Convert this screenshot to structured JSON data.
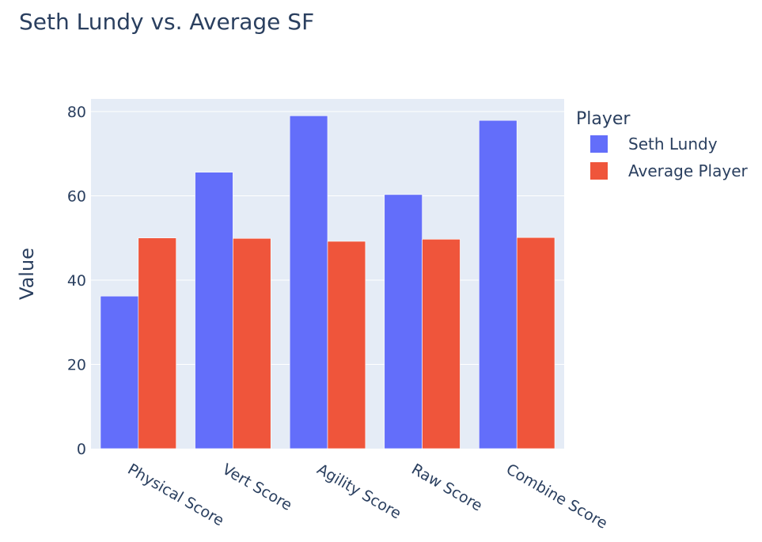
{
  "chart_data": {
    "type": "bar",
    "title": "Seth Lundy vs. Average SF",
    "xlabel": "",
    "ylabel": "Value",
    "categories": [
      "Physical Score",
      "Vert Score",
      "Agility Score",
      "Raw Score",
      "Combine Score"
    ],
    "series": [
      {
        "name": "Seth Lundy",
        "values": [
          36.2,
          65.6,
          79.0,
          60.3,
          77.9
        ],
        "color": "#636efa"
      },
      {
        "name": "Average Player",
        "values": [
          50.0,
          49.9,
          49.2,
          49.7,
          50.1
        ],
        "color": "#ef553b"
      }
    ],
    "ylim": [
      0,
      83
    ],
    "yticks": [
      0,
      20,
      40,
      60,
      80
    ],
    "legend": {
      "title": "Player",
      "placement": "top-right"
    },
    "grid": true,
    "barmode": "group"
  }
}
